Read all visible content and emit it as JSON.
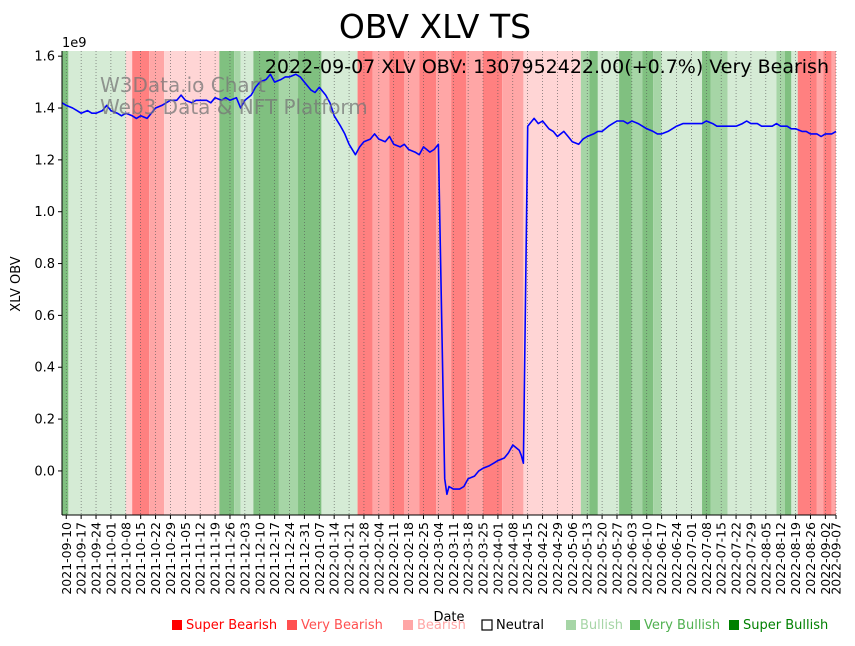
{
  "chart_data": {
    "type": "line",
    "title": "OBV XLV TS",
    "subtitle": "2022-09-07 XLV OBV: 1307952422.00(+0.7%) Very Bearish",
    "watermark": [
      "W3Data.io Chart",
      "Web3 Data & NFT Platform"
    ],
    "xlabel": "Date",
    "ylabel": "XLV OBV",
    "y_multiplier": "1e9",
    "ylim": [
      -0.17,
      1.62
    ],
    "yticks": [
      0.0,
      0.2,
      0.4,
      0.6,
      0.8,
      1.0,
      1.2,
      1.4,
      1.6
    ],
    "ytick_labels": [
      "0.0",
      "0.2",
      "0.4",
      "0.6",
      "0.8",
      "1.0",
      "1.2",
      "1.4",
      "1.6"
    ],
    "xlim": [
      "2021-09-08",
      "2022-09-07"
    ],
    "xticks": [
      "2021-09-10",
      "2021-09-17",
      "2021-09-24",
      "2021-10-01",
      "2021-10-08",
      "2021-10-15",
      "2021-10-22",
      "2021-10-29",
      "2021-11-05",
      "2021-11-12",
      "2021-11-19",
      "2021-11-26",
      "2021-12-03",
      "2021-12-10",
      "2021-12-17",
      "2021-12-24",
      "2021-12-31",
      "2022-01-07",
      "2022-01-14",
      "2022-01-21",
      "2022-01-28",
      "2022-02-04",
      "2022-02-11",
      "2022-02-18",
      "2022-02-25",
      "2022-03-04",
      "2022-03-11",
      "2022-03-18",
      "2022-03-25",
      "2022-04-01",
      "2022-04-08",
      "2022-04-15",
      "2022-04-22",
      "2022-04-29",
      "2022-05-06",
      "2022-05-13",
      "2022-05-20",
      "2022-05-27",
      "2022-06-03",
      "2022-06-10",
      "2022-06-17",
      "2022-06-24",
      "2022-07-01",
      "2022-07-08",
      "2022-07-15",
      "2022-07-22",
      "2022-07-29",
      "2022-08-05",
      "2022-08-12",
      "2022-08-19",
      "2022-08-26",
      "2022-09-02",
      "2022-09-07"
    ],
    "grid": "x-dotted",
    "series": [
      {
        "name": "",
        "color": "#0000ff",
        "points": [
          [
            "2021-09-08",
            1.42
          ],
          [
            "2021-09-10",
            1.41
          ],
          [
            "2021-09-13",
            1.4
          ],
          [
            "2021-09-15",
            1.39
          ],
          [
            "2021-09-17",
            1.38
          ],
          [
            "2021-09-20",
            1.39
          ],
          [
            "2021-09-22",
            1.38
          ],
          [
            "2021-09-24",
            1.38
          ],
          [
            "2021-09-27",
            1.39
          ],
          [
            "2021-09-29",
            1.41
          ],
          [
            "2021-10-01",
            1.39
          ],
          [
            "2021-10-04",
            1.38
          ],
          [
            "2021-10-06",
            1.37
          ],
          [
            "2021-10-08",
            1.38
          ],
          [
            "2021-10-11",
            1.37
          ],
          [
            "2021-10-13",
            1.36
          ],
          [
            "2021-10-15",
            1.37
          ],
          [
            "2021-10-18",
            1.36
          ],
          [
            "2021-10-20",
            1.38
          ],
          [
            "2021-10-22",
            1.4
          ],
          [
            "2021-10-25",
            1.41
          ],
          [
            "2021-10-27",
            1.42
          ],
          [
            "2021-10-29",
            1.43
          ],
          [
            "2021-11-01",
            1.43
          ],
          [
            "2021-11-03",
            1.45
          ],
          [
            "2021-11-05",
            1.43
          ],
          [
            "2021-11-08",
            1.42
          ],
          [
            "2021-11-10",
            1.43
          ],
          [
            "2021-11-12",
            1.43
          ],
          [
            "2021-11-15",
            1.43
          ],
          [
            "2021-11-17",
            1.42
          ],
          [
            "2021-11-19",
            1.44
          ],
          [
            "2021-11-22",
            1.43
          ],
          [
            "2021-11-24",
            1.44
          ],
          [
            "2021-11-26",
            1.43
          ],
          [
            "2021-11-29",
            1.44
          ],
          [
            "2021-12-01",
            1.4
          ],
          [
            "2021-12-03",
            1.43
          ],
          [
            "2021-12-06",
            1.45
          ],
          [
            "2021-12-08",
            1.48
          ],
          [
            "2021-12-10",
            1.5
          ],
          [
            "2021-12-13",
            1.51
          ],
          [
            "2021-12-15",
            1.53
          ],
          [
            "2021-12-17",
            1.5
          ],
          [
            "2021-12-20",
            1.51
          ],
          [
            "2021-12-22",
            1.52
          ],
          [
            "2021-12-24",
            1.52
          ],
          [
            "2021-12-27",
            1.53
          ],
          [
            "2021-12-29",
            1.52
          ],
          [
            "2021-12-31",
            1.5
          ],
          [
            "2022-01-03",
            1.47
          ],
          [
            "2022-01-05",
            1.46
          ],
          [
            "2022-01-07",
            1.48
          ],
          [
            "2022-01-10",
            1.45
          ],
          [
            "2022-01-12",
            1.42
          ],
          [
            "2022-01-14",
            1.37
          ],
          [
            "2022-01-17",
            1.33
          ],
          [
            "2022-01-19",
            1.3
          ],
          [
            "2022-01-21",
            1.26
          ],
          [
            "2022-01-24",
            1.22
          ],
          [
            "2022-01-26",
            1.25
          ],
          [
            "2022-01-28",
            1.27
          ],
          [
            "2022-01-31",
            1.28
          ],
          [
            "2022-02-02",
            1.3
          ],
          [
            "2022-02-04",
            1.28
          ],
          [
            "2022-02-07",
            1.27
          ],
          [
            "2022-02-09",
            1.29
          ],
          [
            "2022-02-11",
            1.26
          ],
          [
            "2022-02-14",
            1.25
          ],
          [
            "2022-02-16",
            1.26
          ],
          [
            "2022-02-18",
            1.24
          ],
          [
            "2022-02-21",
            1.23
          ],
          [
            "2022-02-23",
            1.22
          ],
          [
            "2022-02-25",
            1.25
          ],
          [
            "2022-02-28",
            1.23
          ],
          [
            "2022-03-02",
            1.24
          ],
          [
            "2022-03-04",
            1.26
          ],
          [
            "2022-03-07",
            -0.03
          ],
          [
            "2022-03-08",
            -0.09
          ],
          [
            "2022-03-09",
            -0.06
          ],
          [
            "2022-03-11",
            -0.07
          ],
          [
            "2022-03-14",
            -0.07
          ],
          [
            "2022-03-16",
            -0.06
          ],
          [
            "2022-03-18",
            -0.03
          ],
          [
            "2022-03-21",
            -0.02
          ],
          [
            "2022-03-23",
            0.0
          ],
          [
            "2022-03-25",
            0.01
          ],
          [
            "2022-03-28",
            0.02
          ],
          [
            "2022-03-30",
            0.03
          ],
          [
            "2022-04-01",
            0.04
          ],
          [
            "2022-04-04",
            0.05
          ],
          [
            "2022-04-06",
            0.07
          ],
          [
            "2022-04-08",
            0.1
          ],
          [
            "2022-04-11",
            0.08
          ],
          [
            "2022-04-12",
            0.06
          ],
          [
            "2022-04-13",
            0.03
          ],
          [
            "2022-04-15",
            1.33
          ],
          [
            "2022-04-18",
            1.36
          ],
          [
            "2022-04-20",
            1.34
          ],
          [
            "2022-04-22",
            1.35
          ],
          [
            "2022-04-25",
            1.32
          ],
          [
            "2022-04-27",
            1.31
          ],
          [
            "2022-04-29",
            1.29
          ],
          [
            "2022-05-02",
            1.31
          ],
          [
            "2022-05-04",
            1.29
          ],
          [
            "2022-05-06",
            1.27
          ],
          [
            "2022-05-09",
            1.26
          ],
          [
            "2022-05-11",
            1.28
          ],
          [
            "2022-05-13",
            1.29
          ],
          [
            "2022-05-16",
            1.3
          ],
          [
            "2022-05-18",
            1.31
          ],
          [
            "2022-05-20",
            1.31
          ],
          [
            "2022-05-23",
            1.33
          ],
          [
            "2022-05-25",
            1.34
          ],
          [
            "2022-05-27",
            1.35
          ],
          [
            "2022-05-30",
            1.35
          ],
          [
            "2022-06-01",
            1.34
          ],
          [
            "2022-06-03",
            1.35
          ],
          [
            "2022-06-06",
            1.34
          ],
          [
            "2022-06-08",
            1.33
          ],
          [
            "2022-06-10",
            1.32
          ],
          [
            "2022-06-13",
            1.31
          ],
          [
            "2022-06-15",
            1.3
          ],
          [
            "2022-06-17",
            1.3
          ],
          [
            "2022-06-20",
            1.31
          ],
          [
            "2022-06-22",
            1.32
          ],
          [
            "2022-06-24",
            1.33
          ],
          [
            "2022-06-27",
            1.34
          ],
          [
            "2022-06-29",
            1.34
          ],
          [
            "2022-07-01",
            1.34
          ],
          [
            "2022-07-04",
            1.34
          ],
          [
            "2022-07-06",
            1.34
          ],
          [
            "2022-07-08",
            1.35
          ],
          [
            "2022-07-11",
            1.34
          ],
          [
            "2022-07-13",
            1.33
          ],
          [
            "2022-07-15",
            1.33
          ],
          [
            "2022-07-18",
            1.33
          ],
          [
            "2022-07-20",
            1.33
          ],
          [
            "2022-07-22",
            1.33
          ],
          [
            "2022-07-25",
            1.34
          ],
          [
            "2022-07-27",
            1.35
          ],
          [
            "2022-07-29",
            1.34
          ],
          [
            "2022-08-01",
            1.34
          ],
          [
            "2022-08-03",
            1.33
          ],
          [
            "2022-08-05",
            1.33
          ],
          [
            "2022-08-08",
            1.33
          ],
          [
            "2022-08-10",
            1.34
          ],
          [
            "2022-08-12",
            1.33
          ],
          [
            "2022-08-15",
            1.33
          ],
          [
            "2022-08-17",
            1.32
          ],
          [
            "2022-08-19",
            1.32
          ],
          [
            "2022-08-22",
            1.31
          ],
          [
            "2022-08-24",
            1.31
          ],
          [
            "2022-08-26",
            1.3
          ],
          [
            "2022-08-29",
            1.3
          ],
          [
            "2022-08-31",
            1.29
          ],
          [
            "2022-09-02",
            1.3
          ],
          [
            "2022-09-05",
            1.3
          ],
          [
            "2022-09-07",
            1.31
          ]
        ]
      }
    ],
    "sentiment_colors": {
      "super_bearish": "#ff8080",
      "very_bearish": "#ffa6a6",
      "bearish": "#ffd5d5",
      "neutral": "#ffffff",
      "bullish": "#d5ebd5",
      "very_bullish": "#a6d5a6",
      "super_bullish": "#80c080"
    },
    "background_bands": [
      [
        "2021-09-08",
        "2021-09-11",
        "super_bullish"
      ],
      [
        "2021-09-11",
        "2021-10-08",
        "bullish"
      ],
      [
        "2021-10-08",
        "2021-10-11",
        "bearish"
      ],
      [
        "2021-10-11",
        "2021-10-19",
        "super_bearish"
      ],
      [
        "2021-10-19",
        "2021-10-26",
        "very_bearish"
      ],
      [
        "2021-10-26",
        "2021-11-21",
        "bearish"
      ],
      [
        "2021-11-21",
        "2021-11-28",
        "super_bullish"
      ],
      [
        "2021-11-28",
        "2021-12-01",
        "very_bullish"
      ],
      [
        "2021-12-01",
        "2021-12-07",
        "bullish"
      ],
      [
        "2021-12-07",
        "2021-12-19",
        "super_bullish"
      ],
      [
        "2021-12-19",
        "2021-12-28",
        "very_bullish"
      ],
      [
        "2021-12-28",
        "2022-01-08",
        "super_bullish"
      ],
      [
        "2022-01-08",
        "2022-01-25",
        "bullish"
      ],
      [
        "2022-01-25",
        "2022-02-01",
        "super_bearish"
      ],
      [
        "2022-02-01",
        "2022-02-09",
        "very_bearish"
      ],
      [
        "2022-02-09",
        "2022-02-16",
        "super_bearish"
      ],
      [
        "2022-02-16",
        "2022-02-23",
        "very_bearish"
      ],
      [
        "2022-02-23",
        "2022-03-03",
        "super_bearish"
      ],
      [
        "2022-03-03",
        "2022-03-10",
        "very_bearish"
      ],
      [
        "2022-03-10",
        "2022-03-17",
        "super_bearish"
      ],
      [
        "2022-03-17",
        "2022-03-25",
        "very_bearish"
      ],
      [
        "2022-03-25",
        "2022-04-03",
        "super_bearish"
      ],
      [
        "2022-04-03",
        "2022-04-13",
        "very_bearish"
      ],
      [
        "2022-04-13",
        "2022-05-10",
        "bearish"
      ],
      [
        "2022-05-10",
        "2022-05-14",
        "very_bullish"
      ],
      [
        "2022-05-14",
        "2022-05-18",
        "super_bullish"
      ],
      [
        "2022-05-18",
        "2022-05-28",
        "bullish"
      ],
      [
        "2022-05-28",
        "2022-06-03",
        "super_bullish"
      ],
      [
        "2022-06-03",
        "2022-06-08",
        "very_bullish"
      ],
      [
        "2022-06-08",
        "2022-06-13",
        "super_bullish"
      ],
      [
        "2022-06-13",
        "2022-06-17",
        "very_bullish"
      ],
      [
        "2022-06-17",
        "2022-07-06",
        "bullish"
      ],
      [
        "2022-07-06",
        "2022-07-10",
        "super_bullish"
      ],
      [
        "2022-07-10",
        "2022-07-18",
        "very_bullish"
      ],
      [
        "2022-07-18",
        "2022-08-10",
        "bullish"
      ],
      [
        "2022-08-10",
        "2022-08-14",
        "very_bullish"
      ],
      [
        "2022-08-14",
        "2022-08-17",
        "super_bullish"
      ],
      [
        "2022-08-17",
        "2022-08-20",
        "bullish"
      ],
      [
        "2022-08-20",
        "2022-08-29",
        "super_bearish"
      ],
      [
        "2022-08-29",
        "2022-09-01",
        "very_bearish"
      ],
      [
        "2022-09-01",
        "2022-09-05",
        "super_bearish"
      ],
      [
        "2022-09-05",
        "2022-09-07",
        "very_bearish"
      ]
    ],
    "legend": [
      {
        "label": "Super Bearish",
        "color": "#ff0000"
      },
      {
        "label": "Very Bearish",
        "color": "#ff5050"
      },
      {
        "label": "Bearish",
        "color": "#ffa6a6"
      },
      {
        "label": "Neutral",
        "color": "#000000",
        "hollow": true
      },
      {
        "label": "Bullish",
        "color": "#a6d5a6"
      },
      {
        "label": "Very Bullish",
        "color": "#50b050"
      },
      {
        "label": "Super Bullish",
        "color": "#008000"
      }
    ],
    "legend_placement": "bottom"
  }
}
